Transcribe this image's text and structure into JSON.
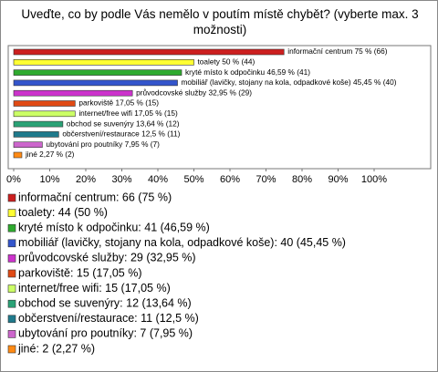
{
  "chart_data": {
    "type": "bar",
    "orientation": "horizontal",
    "title": "Uveďte, co by podle Vás nemělo v poutím místě chybět? (vyberte max. 3 možnosti)",
    "categories": [
      "informační centrum",
      "toalety",
      "kryté místo k odpočinku",
      "mobiliář (lavičky, stojany na kola, odpadkové koše)",
      "průvodcovské služby",
      "parkoviště",
      "internet/free wifi",
      "obchod se suvenýry",
      "občerstvení/restaurace",
      "ubytování pro poutníky",
      "jiné"
    ],
    "values": [
      75,
      50,
      46.59,
      45.45,
      32.95,
      17.05,
      17.05,
      13.64,
      12.5,
      7.95,
      2.27
    ],
    "value_labels": [
      "informační centrum 75 % (66)",
      "toalety 50 % (44)",
      "kryté místo k odpočinku 46,59 % (41)",
      "mobiliář (lavičky, stojany na kola, odpadkové koše) 45,45 % (40)",
      "průvodcovské služby 32,95 % (29)",
      "parkoviště 17,05 % (15)",
      "internet/free wifi 17,05 % (15)",
      "obchod se suvenýry 13,64 % (12)",
      "občerstvení/restaurace 12,5 % (11)",
      "ubytování pro poutníky 7,95 % (7)",
      "jiné 2,27 % (2)"
    ],
    "legend_labels": [
      "informační centrum: 66 (75 %)",
      "toalety: 44 (50 %)",
      "kryté místo k odpočinku: 41 (46,59 %)",
      "mobiliář (lavičky, stojany na kola, odpadkové koše): 40 (45,45 %)",
      "průvodcovské služby: 29 (32,95 %)",
      "parkoviště: 15 (17,05 %)",
      "internet/free wifi: 15 (17,05 %)",
      "obchod se suvenýry: 12 (13,64 %)",
      "občerstvení/restaurace: 11 (12,5 %)",
      "ubytování pro poutníky: 7 (7,95 %)",
      "jiné: 2 (2,27 %)"
    ],
    "colors": [
      "#cc1f1f",
      "#ffff33",
      "#2eaa2e",
      "#3355cc",
      "#cc33cc",
      "#e04a14",
      "#ccff66",
      "#2aa276",
      "#1f7a8c",
      "#cc66cc",
      "#ff8a14"
    ],
    "xlim": [
      0,
      100
    ],
    "xticks": [
      {
        "value": 0,
        "label": "0%"
      },
      {
        "value": 10,
        "label": "10%"
      },
      {
        "value": 20,
        "label": "20%"
      },
      {
        "value": 30,
        "label": "30%"
      },
      {
        "value": 40,
        "label": "40%"
      },
      {
        "value": 50,
        "label": "50%"
      },
      {
        "value": 60,
        "label": "60%"
      },
      {
        "value": 70,
        "label": "70%"
      },
      {
        "value": 80,
        "label": "80%"
      },
      {
        "value": 90,
        "label": "90%"
      },
      {
        "value": 100,
        "label": "100%"
      }
    ]
  }
}
